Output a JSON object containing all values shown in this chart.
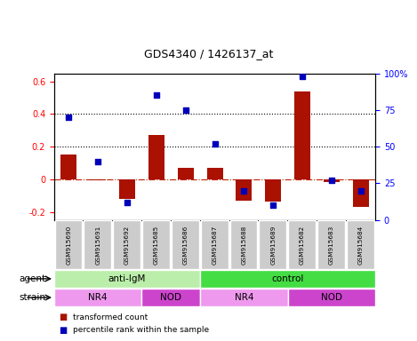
{
  "title": "GDS4340 / 1426137_at",
  "samples": [
    "GSM915690",
    "GSM915691",
    "GSM915692",
    "GSM915685",
    "GSM915686",
    "GSM915687",
    "GSM915688",
    "GSM915689",
    "GSM915682",
    "GSM915683",
    "GSM915684"
  ],
  "transformed_count": [
    0.15,
    -0.005,
    -0.12,
    0.27,
    0.07,
    0.07,
    -0.13,
    -0.14,
    0.54,
    -0.02,
    -0.17
  ],
  "percentile_rank": [
    0.7,
    0.4,
    0.12,
    0.85,
    0.75,
    0.52,
    0.2,
    0.1,
    0.98,
    0.27,
    0.2
  ],
  "bar_color": "#aa1100",
  "dot_color": "#0000bb",
  "ylim_left": [
    -0.25,
    0.65
  ],
  "ylim_right": [
    0.0,
    1.0
  ],
  "yticks_left": [
    -0.2,
    0.0,
    0.2,
    0.4,
    0.6
  ],
  "yticks_right": [
    0.0,
    0.25,
    0.5,
    0.75,
    1.0
  ],
  "ytick_labels_right": [
    "0",
    "25",
    "50",
    "75",
    "100%"
  ],
  "ytick_labels_left": [
    "-0.2",
    "0",
    "0.2",
    "0.4",
    "0.6"
  ],
  "hlines": [
    0.2,
    0.4
  ],
  "zero_line": 0.0,
  "agent_groups": [
    {
      "label": "anti-IgM",
      "start": 0,
      "end": 5,
      "color": "#bbeeaa"
    },
    {
      "label": "control",
      "start": 5,
      "end": 11,
      "color": "#44dd44"
    }
  ],
  "strain_groups": [
    {
      "label": "NR4",
      "start": 0,
      "end": 3,
      "color": "#ee99ee"
    },
    {
      "label": "NOD",
      "start": 3,
      "end": 5,
      "color": "#cc44cc"
    },
    {
      "label": "NR4",
      "start": 5,
      "end": 8,
      "color": "#ee99ee"
    },
    {
      "label": "NOD",
      "start": 8,
      "end": 11,
      "color": "#cc44cc"
    }
  ],
  "legend_items": [
    {
      "label": "transformed count",
      "color": "#aa1100"
    },
    {
      "label": "percentile rank within the sample",
      "color": "#0000bb"
    }
  ],
  "bg_color": "#f0f0f0",
  "plot_bg": "white"
}
